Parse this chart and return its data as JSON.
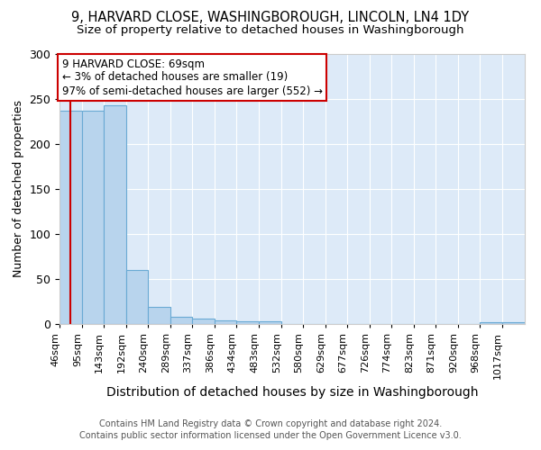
{
  "title1": "9, HARVARD CLOSE, WASHINGBOROUGH, LINCOLN, LN4 1DY",
  "title2": "Size of property relative to detached houses in Washingborough",
  "xlabel": "Distribution of detached houses by size in Washingborough",
  "ylabel": "Number of detached properties",
  "footnote1": "Contains HM Land Registry data © Crown copyright and database right 2024.",
  "footnote2": "Contains public sector information licensed under the Open Government Licence v3.0.",
  "annotation_line1": "9 HARVARD CLOSE: 69sqm",
  "annotation_line2": "← 3% of detached houses are smaller (19)",
  "annotation_line3": "97% of semi-detached houses are larger (552) →",
  "property_size": 69,
  "bar_left_edges": [
    46,
    95,
    143,
    192,
    240,
    289,
    337,
    386,
    434,
    483,
    532,
    580,
    629,
    677,
    726,
    774,
    823,
    871,
    920,
    968,
    1017
  ],
  "bar_heights": [
    237,
    237,
    243,
    60,
    19,
    8,
    6,
    4,
    3,
    3,
    0,
    0,
    0,
    0,
    0,
    0,
    0,
    0,
    0,
    2,
    2
  ],
  "bar_color": "#b8d4ed",
  "bar_edge_color": "#6aaad4",
  "red_line_color": "#cc0000",
  "annotation_box_edge_color": "#cc0000",
  "annotation_box_face_color": "#ffffff",
  "background_color": "#ddeaf8",
  "ylim": [
    0,
    300
  ],
  "title1_fontsize": 10.5,
  "title2_fontsize": 9.5,
  "xlabel_fontsize": 10,
  "ylabel_fontsize": 9,
  "tick_fontsize": 8,
  "footnote_fontsize": 7,
  "annotation_fontsize": 8.5
}
